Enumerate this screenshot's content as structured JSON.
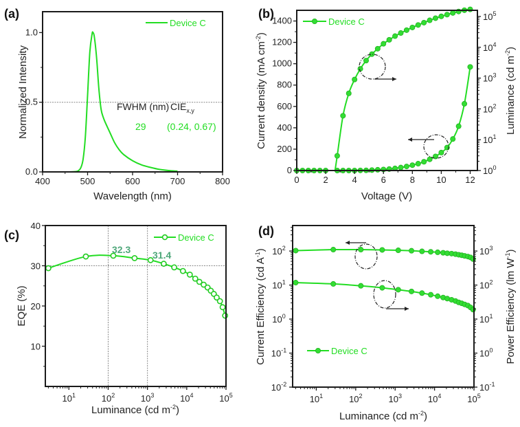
{
  "chart_data": [
    {
      "panel": "(a)",
      "type": "line",
      "xlabel": "Wavelength (nm)",
      "ylabel": "Normalized Intensity",
      "xlim": [
        400,
        800
      ],
      "ylim": [
        0,
        1.15
      ],
      "xticks": [
        400,
        500,
        600,
        700,
        800
      ],
      "yticks": [
        0.0,
        0.5,
        1.0
      ],
      "ytick_labels": [
        "0.0",
        "0.5",
        "1.0"
      ],
      "legend": [
        "Device C"
      ],
      "legend_position": "top-right",
      "reference_line_y": 0.5,
      "annotations": {
        "fwhm_header": "FWHM (nm)",
        "cie_header": "CIE",
        "cie_subscript": "x,y",
        "fwhm_value": "29",
        "cie_value": "(0.24, 0.67)"
      },
      "series": [
        {
          "name": "Device C",
          "x": [
            400,
            460,
            475,
            480,
            485,
            490,
            495,
            500,
            505,
            510,
            512,
            515,
            520,
            525,
            530,
            535,
            540,
            550,
            560,
            570,
            580,
            600,
            620,
            640,
            660,
            680,
            700
          ],
          "y": [
            0.0,
            0.0,
            0.003,
            0.01,
            0.03,
            0.09,
            0.25,
            0.55,
            0.86,
            0.99,
            1.0,
            0.97,
            0.82,
            0.6,
            0.45,
            0.39,
            0.35,
            0.28,
            0.21,
            0.16,
            0.125,
            0.08,
            0.05,
            0.032,
            0.018,
            0.01,
            0.005
          ]
        }
      ]
    },
    {
      "panel": "(b)",
      "type": "line",
      "xlabel": "Voltage (V)",
      "ylabel": "Current density (mA cm-2)",
      "ylabel_parts": [
        "Current density (mA cm",
        "-2",
        ")"
      ],
      "y2label_parts": [
        "Luminance (cd m",
        "-2",
        ")"
      ],
      "xlim": [
        0,
        12.5
      ],
      "ylim": [
        0,
        1500
      ],
      "y2lim_log10": [
        0,
        5.2
      ],
      "y2scale": "log",
      "xticks": [
        0,
        2,
        4,
        6,
        8,
        10,
        12
      ],
      "yticks": [
        0,
        200,
        400,
        600,
        800,
        1000,
        1200,
        1400
      ],
      "y2ticks_exp": [
        0,
        1,
        2,
        3,
        4,
        5
      ],
      "legend": [
        "Device C"
      ],
      "legend_position": "top-left",
      "series": [
        {
          "name": "Current density",
          "axis": "left",
          "x": [
            0,
            0.4,
            0.8,
            1.2,
            1.6,
            2.0,
            2.8,
            3.2,
            3.6,
            4.0,
            4.4,
            4.8,
            5.2,
            5.6,
            6.0,
            6.4,
            6.8,
            7.2,
            7.6,
            8.0,
            8.4,
            8.8,
            9.2,
            9.6,
            10.0,
            10.4,
            10.8,
            11.2,
            11.6,
            12.0
          ],
          "y": [
            0,
            0,
            0,
            0,
            0,
            0,
            0,
            0,
            0,
            0,
            1,
            2,
            4,
            7,
            10,
            14,
            20,
            28,
            38,
            50,
            64,
            82,
            105,
            132,
            168,
            215,
            295,
            415,
            625,
            970
          ]
        },
        {
          "name": "Luminance",
          "axis": "right",
          "x": [
            2.8,
            3.2,
            3.6,
            4.0,
            4.4,
            4.8,
            5.2,
            5.6,
            6.0,
            6.4,
            6.8,
            7.2,
            7.6,
            8.0,
            8.4,
            8.8,
            9.2,
            9.6,
            10.0,
            10.4,
            10.8,
            11.2,
            11.6,
            12.0
          ],
          "y": [
            3,
            60,
            320,
            900,
            2000,
            3700,
            6000,
            9000,
            13000,
            17500,
            23000,
            29000,
            36000,
            44000,
            53000,
            63000,
            75000,
            88000,
            101000,
            115000,
            130000,
            145000,
            160000,
            170000
          ]
        }
      ]
    },
    {
      "panel": "(c)",
      "type": "line",
      "xlabel_parts": [
        "Luminance (cd m",
        "-2",
        ")"
      ],
      "ylabel": "EQE (%)",
      "xscale": "log",
      "xlim_log10": [
        0.4,
        5
      ],
      "ylim": [
        0,
        40
      ],
      "xticks_exp": [
        1,
        2,
        3,
        4,
        5
      ],
      "yticks": [
        10,
        20,
        30,
        40
      ],
      "legend": [
        "Device C"
      ],
      "legend_position": "top-right",
      "reference_lines": {
        "y": 30,
        "x": [
          100,
          1000
        ]
      },
      "annotations": [
        {
          "text": "32.3",
          "x": 100,
          "y": 32.3
        },
        {
          "text": "31.4",
          "x": 1000,
          "y": 31.4
        }
      ],
      "series": [
        {
          "name": "Device C",
          "x": [
            3,
            27,
            135,
            470,
            1200,
            2600,
            4800,
            8000,
            12000,
            16500,
            21000,
            27000,
            34000,
            41000,
            49000,
            58000,
            70000,
            82000,
            95000
          ],
          "y": [
            29.4,
            32.3,
            32.5,
            31.9,
            31.4,
            30.5,
            29.6,
            28.7,
            27.8,
            26.8,
            26.0,
            25.3,
            24.6,
            23.8,
            23.0,
            22.1,
            21.2,
            19.7,
            17.6
          ]
        }
      ]
    },
    {
      "panel": "(d)",
      "type": "line",
      "xlabel_parts": [
        "Luminance (cd m",
        "-2",
        ")"
      ],
      "ylabel_parts": [
        "Current Efficiency (cd A",
        "-1",
        ")"
      ],
      "y2label_parts": [
        "Power Efficiency (lm W",
        "-1",
        ")"
      ],
      "xscale": "log",
      "yscale": "log",
      "xlim_log10": [
        0.4,
        5
      ],
      "ylim_log10": [
        -2,
        2.75
      ],
      "y2lim_log10": [
        -1,
        3.75
      ],
      "xticks_exp": [
        1,
        2,
        3,
        4,
        5
      ],
      "yticks_exp": [
        -2,
        -1,
        0,
        1,
        2
      ],
      "y2ticks_exp": [
        -1,
        0,
        1,
        2,
        3
      ],
      "legend": [
        "Device C"
      ],
      "legend_position": "lower-left",
      "series": [
        {
          "name": "Current Efficiency",
          "axis": "left",
          "x": [
            3,
            27,
            135,
            470,
            1200,
            2600,
            4800,
            8000,
            12000,
            16500,
            21000,
            27000,
            34000,
            41000,
            49000,
            58000,
            70000,
            82000,
            95000
          ],
          "y": [
            103,
            110,
            110,
            108,
            105,
            102,
            98,
            95,
            92,
            89,
            86,
            84,
            81,
            78,
            75,
            72,
            69,
            65,
            58
          ]
        },
        {
          "name": "Power Efficiency",
          "axis": "right",
          "x": [
            3,
            27,
            135,
            470,
            1200,
            2600,
            4800,
            8000,
            12000,
            16500,
            21000,
            27000,
            34000,
            41000,
            49000,
            58000,
            70000,
            82000,
            95000
          ],
          "y": [
            118,
            108,
            95,
            83,
            73,
            65,
            58,
            52,
            47,
            43,
            40,
            37,
            34,
            31,
            29,
            27,
            25,
            22,
            19
          ]
        }
      ]
    }
  ],
  "colors": {
    "series": "#22dd22",
    "annotation_teal": "#4ea77a",
    "axis": "#1a1a1a"
  }
}
